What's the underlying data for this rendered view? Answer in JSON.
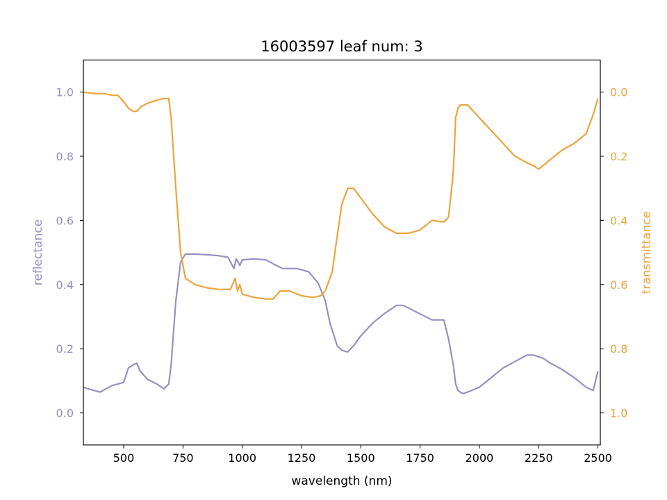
{
  "chart_data": {
    "type": "line",
    "title": "16003597 leaf num: 3",
    "xlabel": "wavelength (nm)",
    "ylabel_left": "reflectance",
    "ylabel_right": "transmittance",
    "xlim": [
      330,
      2510
    ],
    "ylim_left": [
      -0.1,
      1.1
    ],
    "ylim_right": [
      1.1,
      -0.1
    ],
    "right_axis_inverted": true,
    "x_ticks": [
      500,
      750,
      1000,
      1250,
      1500,
      1750,
      2000,
      2250,
      2500
    ],
    "y_ticks_left": [
      0.0,
      0.2,
      0.4,
      0.6,
      0.8,
      1.0
    ],
    "y_ticks_right": [
      0.0,
      0.2,
      0.4,
      0.6,
      0.8,
      1.0
    ],
    "y_tick_labels_left": [
      "0.0",
      "0.2",
      "0.4",
      "0.6",
      "0.8",
      "1.0"
    ],
    "y_tick_labels_right": [
      "0.0",
      "0.2",
      "0.4",
      "0.6",
      "0.8",
      "1.0"
    ],
    "legend": "none",
    "grid": false,
    "series": [
      {
        "color": "#9590c3",
        "axis": "left",
        "x": [
          330,
          350,
          400,
          450,
          500,
          520,
          540,
          555,
          570,
          600,
          640,
          670,
          690,
          700,
          720,
          740,
          760,
          800,
          850,
          900,
          940,
          965,
          975,
          990,
          1000,
          1050,
          1100,
          1130,
          1170,
          1230,
          1280,
          1320,
          1350,
          1370,
          1400,
          1420,
          1445,
          1470,
          1500,
          1550,
          1600,
          1650,
          1680,
          1720,
          1760,
          1800,
          1850,
          1870,
          1890,
          1900,
          1910,
          1930,
          1950,
          2000,
          2050,
          2100,
          2150,
          2200,
          2230,
          2270,
          2300,
          2350,
          2400,
          2450,
          2480,
          2500
        ],
        "y": [
          0.08,
          0.075,
          0.065,
          0.085,
          0.095,
          0.14,
          0.15,
          0.155,
          0.13,
          0.105,
          0.09,
          0.075,
          0.09,
          0.15,
          0.35,
          0.47,
          0.495,
          0.495,
          0.493,
          0.49,
          0.485,
          0.45,
          0.48,
          0.46,
          0.477,
          0.48,
          0.477,
          0.465,
          0.45,
          0.45,
          0.44,
          0.405,
          0.35,
          0.28,
          0.21,
          0.195,
          0.19,
          0.21,
          0.24,
          0.28,
          0.31,
          0.335,
          0.335,
          0.32,
          0.305,
          0.29,
          0.29,
          0.23,
          0.15,
          0.09,
          0.07,
          0.06,
          0.065,
          0.08,
          0.11,
          0.14,
          0.16,
          0.18,
          0.18,
          0.17,
          0.155,
          0.135,
          0.11,
          0.08,
          0.07,
          0.13
        ]
      },
      {
        "color": "#f0a33c",
        "axis": "right",
        "x": [
          330,
          380,
          420,
          450,
          475,
          500,
          520,
          540,
          555,
          575,
          600,
          640,
          670,
          690,
          700,
          720,
          740,
          760,
          800,
          850,
          900,
          950,
          970,
          980,
          990,
          1000,
          1050,
          1100,
          1130,
          1160,
          1200,
          1250,
          1300,
          1330,
          1350,
          1380,
          1400,
          1420,
          1445,
          1470,
          1500,
          1550,
          1600,
          1650,
          1700,
          1750,
          1800,
          1850,
          1870,
          1890,
          1900,
          1910,
          1920,
          1950,
          2000,
          2050,
          2100,
          2150,
          2200,
          2230,
          2250,
          2300,
          2350,
          2400,
          2450,
          2480,
          2500
        ],
        "y": [
          0.0,
          0.005,
          0.005,
          0.01,
          0.01,
          0.03,
          0.05,
          0.06,
          0.06,
          0.045,
          0.035,
          0.025,
          0.02,
          0.02,
          0.08,
          0.3,
          0.5,
          0.58,
          0.6,
          0.61,
          0.615,
          0.615,
          0.58,
          0.62,
          0.6,
          0.63,
          0.64,
          0.645,
          0.645,
          0.62,
          0.62,
          0.635,
          0.64,
          0.635,
          0.62,
          0.56,
          0.45,
          0.35,
          0.3,
          0.3,
          0.33,
          0.38,
          0.42,
          0.44,
          0.44,
          0.43,
          0.4,
          0.405,
          0.39,
          0.25,
          0.08,
          0.05,
          0.04,
          0.04,
          0.08,
          0.12,
          0.16,
          0.2,
          0.22,
          0.23,
          0.24,
          0.21,
          0.18,
          0.16,
          0.13,
          0.07,
          0.02
        ]
      }
    ]
  }
}
